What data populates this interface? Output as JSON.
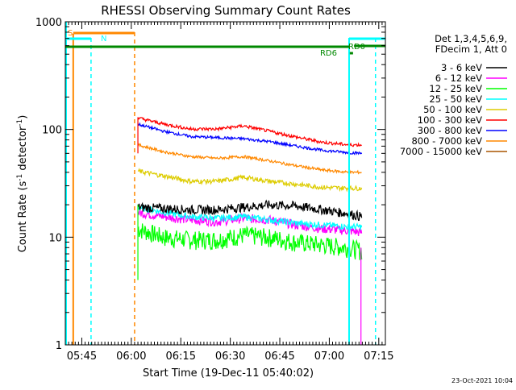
{
  "chart_data": {
    "type": "line",
    "title": "RHESSI Observing Summary Count Rates",
    "xlabel": "Start Time (19-Dec-11 05:40:02)",
    "ylabel_main": "Count Rate (s",
    "ylabel_sup": "-1",
    "ylabel_tail": " detector",
    "ylabel_end": ")",
    "y_scale": "log",
    "ylim": [
      1,
      1000
    ],
    "x_units": "minutes since 05:40:02",
    "xlim": [
      0,
      97
    ],
    "x_ticks": [
      {
        "label": "05:45",
        "value": 5
      },
      {
        "label": "06:00",
        "value": 20
      },
      {
        "label": "06:15",
        "value": 35
      },
      {
        "label": "06:30",
        "value": 50
      },
      {
        "label": "06:45",
        "value": 65
      },
      {
        "label": "07:00",
        "value": 80
      },
      {
        "label": "07:15",
        "value": 95
      }
    ],
    "y_ticks": [
      {
        "label": "1",
        "value": 1
      },
      {
        "label": "10",
        "value": 10
      },
      {
        "label": "100",
        "value": 100
      },
      {
        "label": "1000",
        "value": 1000
      }
    ],
    "legend_header": [
      "Det 1,3,4,5,6,9,",
      "FDecim 1, Att 0"
    ],
    "legend_position": "right",
    "x_sample": [
      22,
      30,
      38,
      46,
      54,
      62,
      70,
      78,
      86,
      90
    ],
    "series": [
      {
        "name": "3 - 6 keV",
        "color": "#000000",
        "values": [
          19,
          18.5,
          18,
          18,
          19,
          20,
          19.5,
          18,
          16.5,
          15.5
        ]
      },
      {
        "name": "6 - 12 keV",
        "color": "#ff00ff",
        "values": [
          17,
          15.5,
          14.5,
          14,
          15,
          14.5,
          13,
          12,
          11.5,
          11
        ]
      },
      {
        "name": "12 - 25 keV",
        "color": "#00ff00",
        "values": [
          12,
          10,
          9.5,
          9.5,
          10.5,
          10,
          9,
          8.5,
          8,
          7.5
        ]
      },
      {
        "name": "25 - 50 keV",
        "color": "#00ffff",
        "values": [
          19,
          17,
          15.5,
          15,
          15.5,
          14.5,
          13.5,
          13,
          12.5,
          12.5
        ]
      },
      {
        "name": "50 - 100 keV",
        "color": "#ddcc00",
        "values": [
          41,
          37,
          33,
          33,
          36,
          33,
          31,
          29,
          28.5,
          28.5
        ]
      },
      {
        "name": "100 - 300 keV",
        "color": "#ff0000",
        "values": [
          128,
          112,
          101,
          101,
          108,
          96,
          85,
          76,
          72,
          72
        ]
      },
      {
        "name": "300 - 800 keV",
        "color": "#0000ff",
        "values": [
          112,
          96,
          86,
          84,
          82,
          77,
          70,
          64,
          61,
          60
        ]
      },
      {
        "name": "800 - 7000 keV",
        "color": "#ff8800",
        "values": [
          72,
          62,
          56,
          54,
          56,
          51,
          46,
          42,
          40,
          40
        ]
      },
      {
        "name": "7000 - 15000 keV",
        "color": "#aa5500",
        "values": []
      }
    ],
    "annotations": [
      {
        "label": "S",
        "color": "#ff8800"
      },
      {
        "label": "N",
        "color": "#00ffff"
      },
      {
        "label": "RD6",
        "color": "#008800"
      },
      {
        "label": "RD0",
        "color": "#008800"
      }
    ]
  },
  "footer": {
    "timestamp": "23-Oct-2021 10:04"
  },
  "colors": {
    "saa_vertical": "#00ffff",
    "attenuator_orange": "#ff8800",
    "decimation_green": "#008800"
  }
}
